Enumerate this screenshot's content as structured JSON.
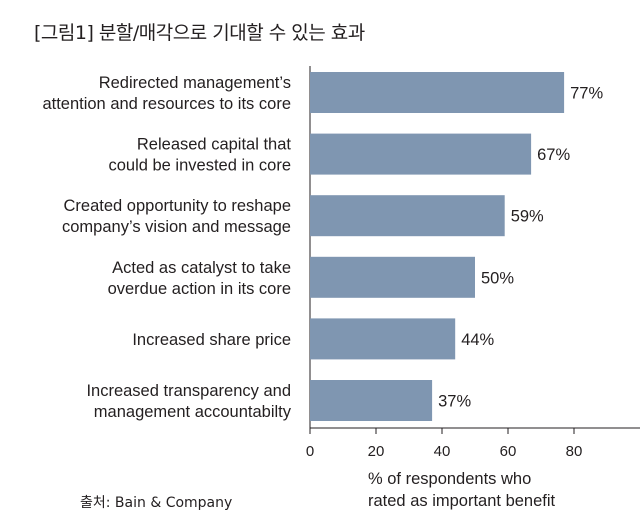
{
  "title": "[그림1] 분할/매각으로 기대할 수 있는 효과",
  "source": "출처: Bain & Company",
  "chart_data": {
    "type": "bar",
    "orientation": "horizontal",
    "categories": [
      [
        "Redirected management’s",
        "attention and resources to its core"
      ],
      [
        "Released capital that",
        "could be invested in core"
      ],
      [
        "Created opportunity to reshape",
        "company’s vision and message"
      ],
      [
        "Acted as catalyst to take",
        "overdue action in its core"
      ],
      [
        "Increased share price"
      ],
      [
        "Increased transparency and",
        "management accountabilty"
      ]
    ],
    "values": [
      77,
      67,
      59,
      50,
      44,
      37
    ],
    "value_labels": [
      "77%",
      "67%",
      "59%",
      "50%",
      "44%",
      "37%"
    ],
    "xlim": [
      0,
      100
    ],
    "xticks": [
      0,
      20,
      40,
      60,
      80
    ],
    "xlabel": [
      "% of respondents who",
      "rated as important benefit"
    ],
    "bar_color": "#7f96b1",
    "grid": false
  }
}
